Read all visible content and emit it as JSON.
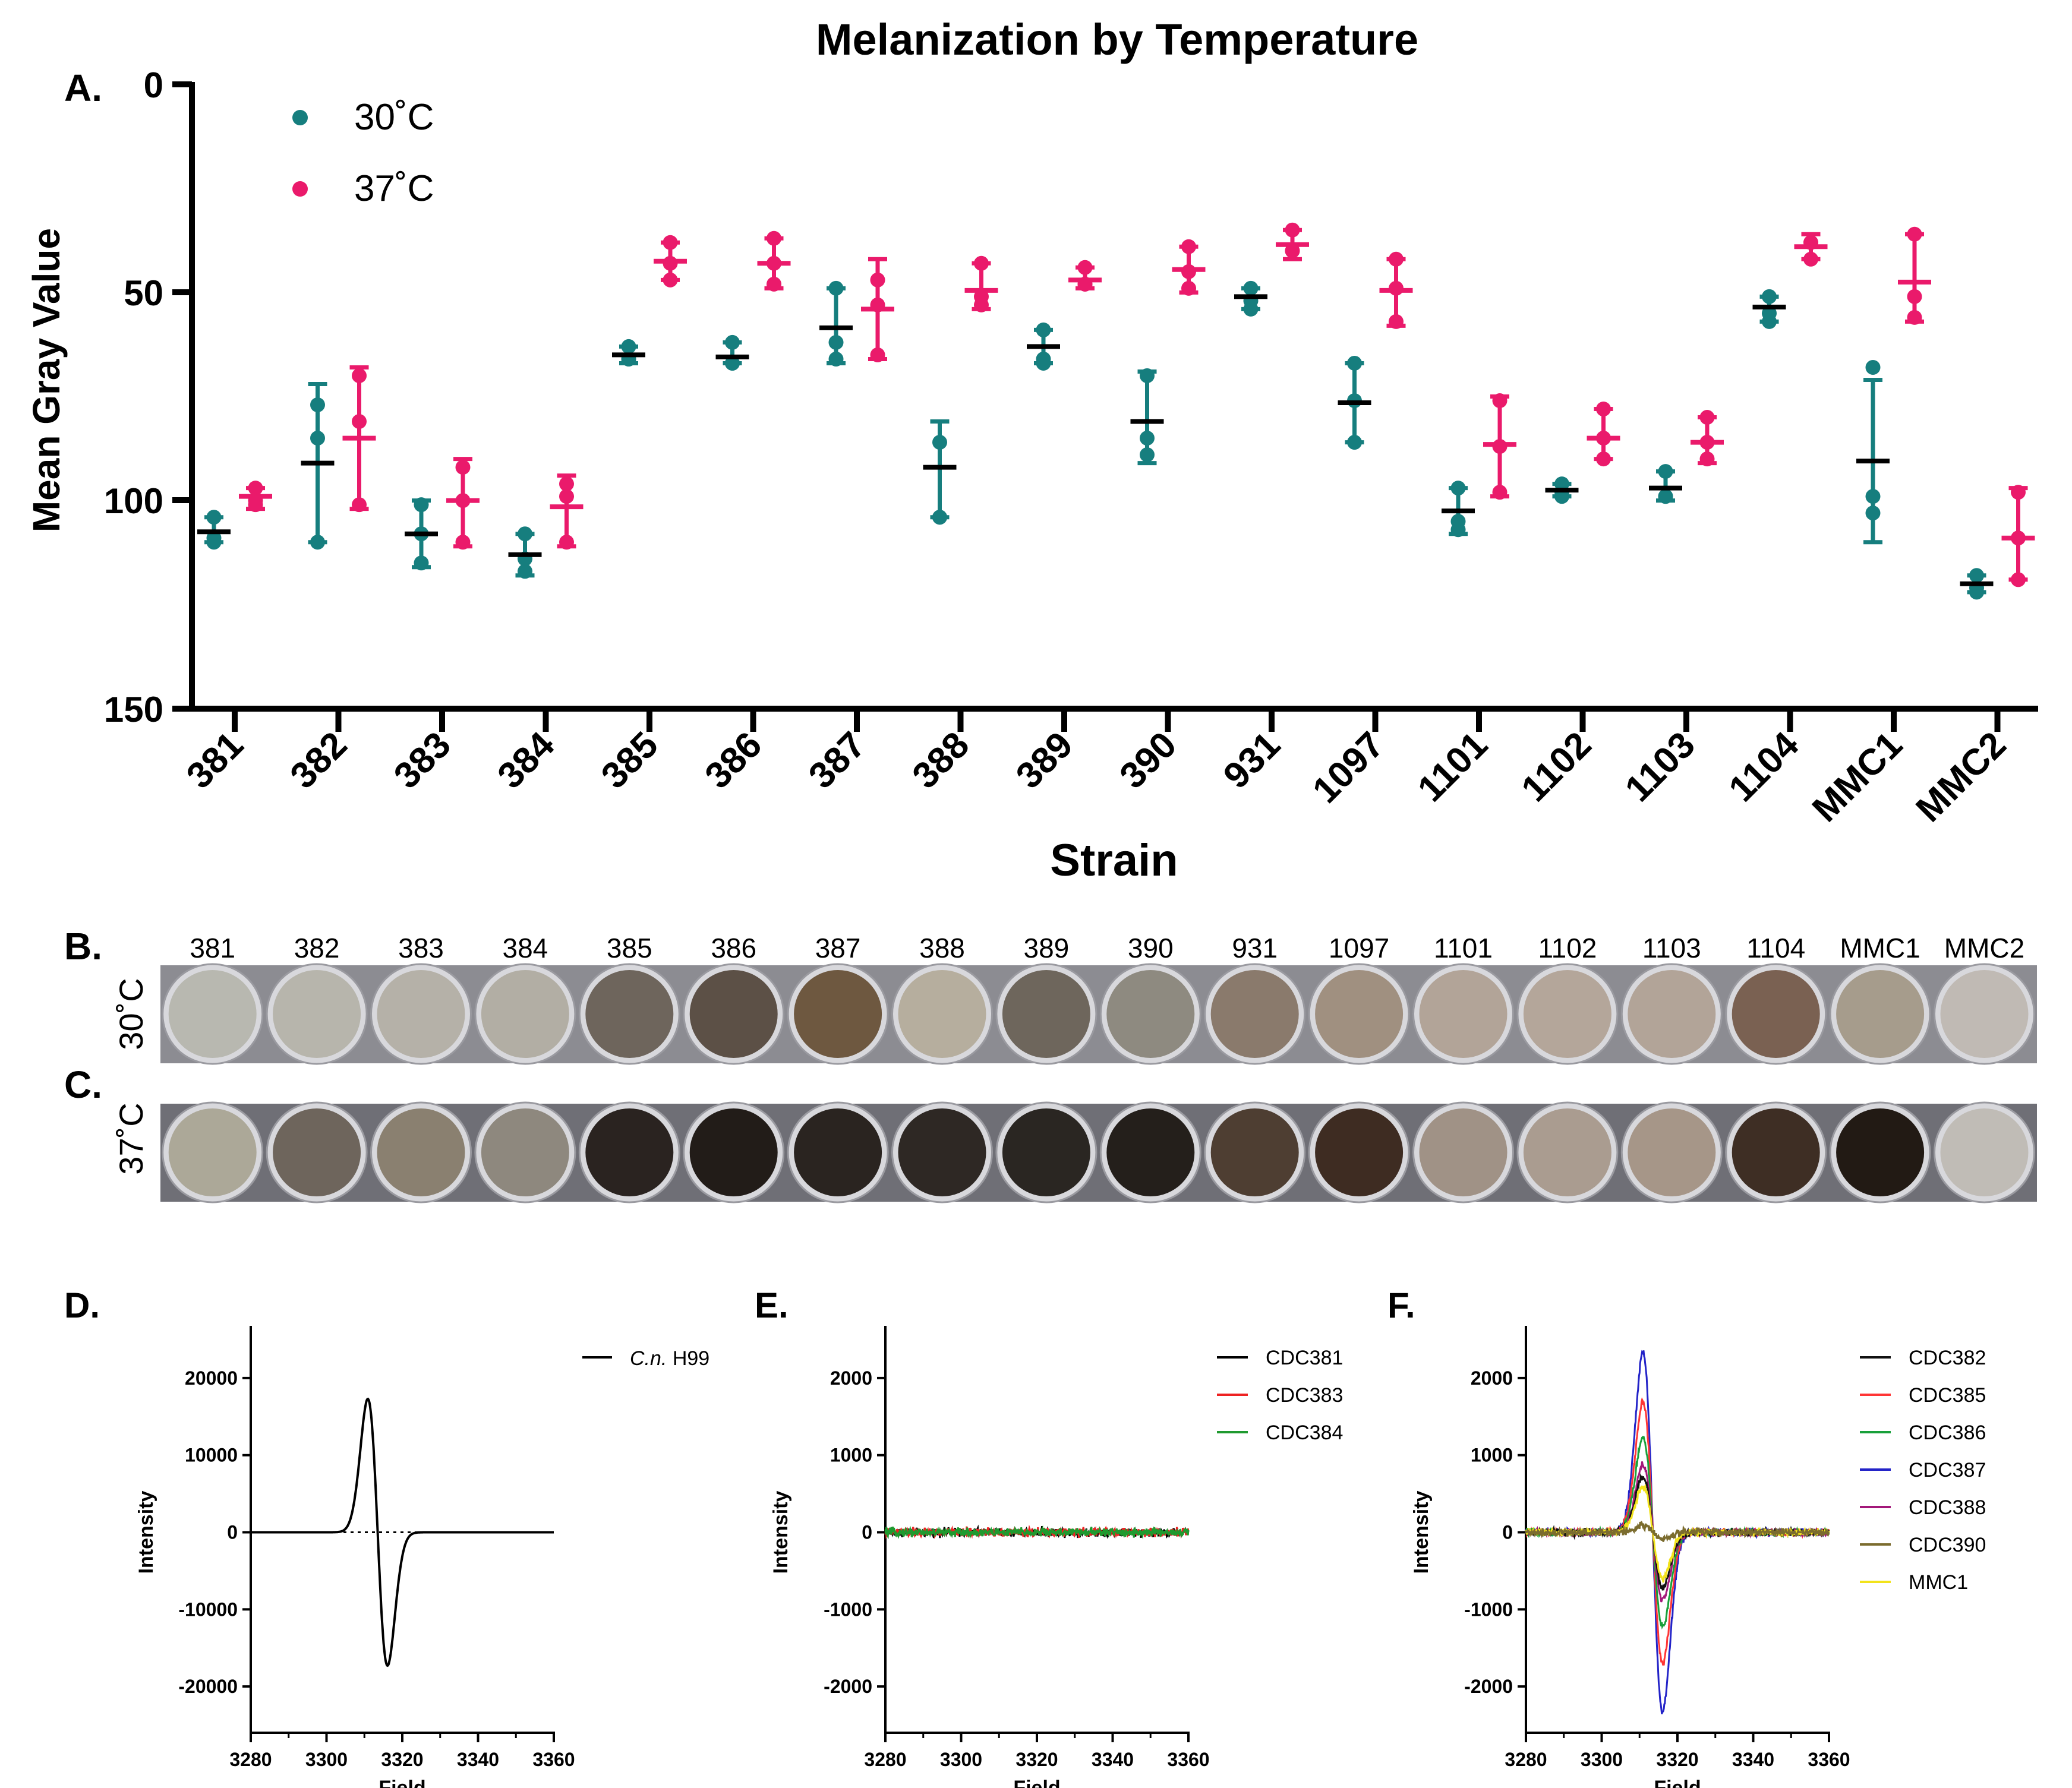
{
  "colors": {
    "c30": "#167e7e",
    "c37": "#ea1a6b",
    "mean": "#000000",
    "e_series": [
      "#000000",
      "#ee2222",
      "#1f9a2f"
    ],
    "f_series": [
      "#111111",
      "#ff3535",
      "#18a03a",
      "#2323c8",
      "#a3187a",
      "#7b6c2e",
      "#f2e31c"
    ]
  },
  "panels": {
    "a": "A.",
    "b": "B.",
    "c": "C.",
    "d": "D.",
    "e": "E.",
    "f": "F."
  },
  "plates": {
    "row_b_label": "30˚C",
    "row_c_label": "37˚C",
    "strains": [
      "381",
      "382",
      "383",
      "384",
      "385",
      "386",
      "387",
      "388",
      "389",
      "390",
      "931",
      "1097",
      "1101",
      "1102",
      "1103",
      "1104",
      "MMC1",
      "MMC2"
    ],
    "shade_30": [
      "#b8b8b0",
      "#b7b5ac",
      "#b5b1a8",
      "#b2aea4",
      "#6e655c",
      "#5c5046",
      "#6e5840",
      "#b6ae9e",
      "#6e665c",
      "#8e8a80",
      "#8a7a6c",
      "#a09080",
      "#b2a498",
      "#b4a69a",
      "#b2a498",
      "#7a6152",
      "#a69c8c",
      "#c0bab4"
    ],
    "shade_37": [
      "#aca898",
      "#6e655c",
      "#8a8070",
      "#8e887e",
      "#2a2320",
      "#221c18",
      "#2a2420",
      "#2e2824",
      "#2a2622",
      "#241f1b",
      "#4e3e32",
      "#3e2c22",
      "#a09286",
      "#aa9c90",
      "#a69688",
      "#3e2e24",
      "#221a14",
      "#c0bcb6"
    ]
  },
  "chart_data": [
    {
      "type": "scatter",
      "title": "Melanization by Temperature",
      "xlabel": "Strain",
      "ylabel": "Mean Gray Value",
      "ylim": [
        0,
        150
      ],
      "y_inverted": true,
      "yticks": [
        "0",
        "50",
        "100",
        "150"
      ],
      "legend": [
        "30˚C",
        "37˚C"
      ],
      "legend_position": "top-left",
      "categories": [
        "381",
        "382",
        "383",
        "384",
        "385",
        "386",
        "387",
        "388",
        "389",
        "390",
        "931",
        "1097",
        "1101",
        "1102",
        "1103",
        "1104",
        "MMC1",
        "MMC2"
      ],
      "series": [
        {
          "name": "30˚C",
          "points": [
            [
              104,
              110,
              109
            ],
            [
              77,
              85,
              110
            ],
            [
              101,
              108,
              115
            ],
            [
              108,
              114,
              117
            ],
            [
              63,
              66,
              66
            ],
            [
              62,
              67,
              67
            ],
            [
              49,
              62,
              66
            ],
            [
              86,
              104,
              104
            ],
            [
              59,
              66,
              67
            ],
            [
              70,
              85,
              89
            ],
            [
              49,
              52,
              54
            ],
            [
              67,
              76,
              86
            ],
            [
              97,
              105,
              107
            ],
            [
              96,
              98,
              99
            ],
            [
              93,
              99,
              99
            ],
            [
              51,
              55,
              57
            ],
            [
              68,
              103,
              99
            ],
            [
              118,
              122,
              121
            ]
          ],
          "mean": [
            107.5,
            91,
            108,
            113,
            65,
            65.5,
            58.5,
            92,
            63,
            81,
            51,
            76.5,
            102.5,
            97.5,
            97,
            53.5,
            90.5,
            120
          ],
          "err_low": [
            104,
            72,
            100,
            108,
            63,
            62,
            49,
            81,
            59,
            69,
            49,
            67,
            97,
            96,
            93,
            51,
            71,
            118
          ],
          "err_high": [
            110,
            110,
            116,
            118,
            67,
            67,
            67,
            104,
            67,
            91,
            54,
            86,
            108,
            99,
            100,
            57,
            110,
            122
          ]
        },
        {
          "name": "37˚C",
          "points": [
            [
              97,
              101,
              100
            ],
            [
              70,
              81,
              101
            ],
            [
              92,
              110,
              100
            ],
            [
              96,
              110,
              99
            ],
            [
              38,
              47,
              43
            ],
            [
              37,
              48,
              43
            ],
            [
              47,
              65,
              53
            ],
            [
              43,
              53,
              51
            ],
            [
              44,
              48,
              48
            ],
            [
              39,
              49,
              45
            ],
            [
              35,
              40,
              40
            ],
            [
              42,
              57,
              49
            ],
            [
              76,
              98,
              87
            ],
            [
              78,
              90,
              85
            ],
            [
              80,
              90,
              86
            ],
            [
              38,
              42,
              38
            ],
            [
              36,
              56,
              51
            ],
            [
              98,
              119,
              109
            ]
          ],
          "mean": [
            99,
            85,
            100,
            101.5,
            42.5,
            43,
            54,
            49.5,
            47,
            44.5,
            38.5,
            49.5,
            86.5,
            85,
            86,
            39,
            47.5,
            109
          ],
          "err_low": [
            97,
            68,
            90,
            94,
            38,
            37,
            42,
            43,
            44,
            39,
            35,
            42,
            75,
            78,
            80,
            36,
            36,
            97
          ],
          "err_high": [
            102,
            102,
            111,
            111,
            47,
            49,
            66,
            54,
            49,
            50,
            42,
            58,
            99,
            90,
            91,
            42,
            57,
            119
          ]
        }
      ]
    },
    {
      "type": "line",
      "panel": "D.",
      "xlabel": "Field",
      "ylabel": "Intensity",
      "xlim": [
        3280,
        3360
      ],
      "ylim": [
        -26000,
        26000
      ],
      "xticks": [
        "3280",
        "3300",
        "3320",
        "3340",
        "3360"
      ],
      "yticks": [
        "20000",
        "10000",
        "0",
        "-10000",
        "-20000"
      ],
      "zero_line": "dotted",
      "series": [
        {
          "name": "H99",
          "name_italic": "C.n.",
          "amplitude": 17300,
          "center": 3313.5,
          "half_width": 2.6
        }
      ]
    },
    {
      "type": "line",
      "panel": "E.",
      "xlabel": "Field",
      "ylabel": "Intensity",
      "xlim": [
        3280,
        3360
      ],
      "ylim": [
        -2600,
        2600
      ],
      "xticks": [
        "3280",
        "3300",
        "3320",
        "3340",
        "3360"
      ],
      "yticks": [
        "2000",
        "1000",
        "0",
        "-1000",
        "-2000"
      ],
      "series": [
        {
          "name": "CDC381",
          "amplitude": 0
        },
        {
          "name": "CDC383",
          "amplitude": 0
        },
        {
          "name": "CDC384",
          "amplitude": 0
        }
      ]
    },
    {
      "type": "line",
      "panel": "F.",
      "xlabel": "Field",
      "ylabel": "Intensity",
      "xlim": [
        3280,
        3360
      ],
      "ylim": [
        -2600,
        2600
      ],
      "xticks": [
        "3280",
        "3300",
        "3320",
        "3340",
        "3360"
      ],
      "yticks": [
        "2000",
        "1000",
        "0",
        "-1000",
        "-2000"
      ],
      "series": [
        {
          "name": "CDC382",
          "amplitude": 720
        },
        {
          "name": "CDC385",
          "amplitude": 1700
        },
        {
          "name": "CDC386",
          "amplitude": 1230
        },
        {
          "name": "CDC387",
          "amplitude": 2330
        },
        {
          "name": "CDC388",
          "amplitude": 880
        },
        {
          "name": "CDC390",
          "amplitude": 90
        },
        {
          "name": "MMC1",
          "amplitude": 600
        }
      ]
    }
  ]
}
